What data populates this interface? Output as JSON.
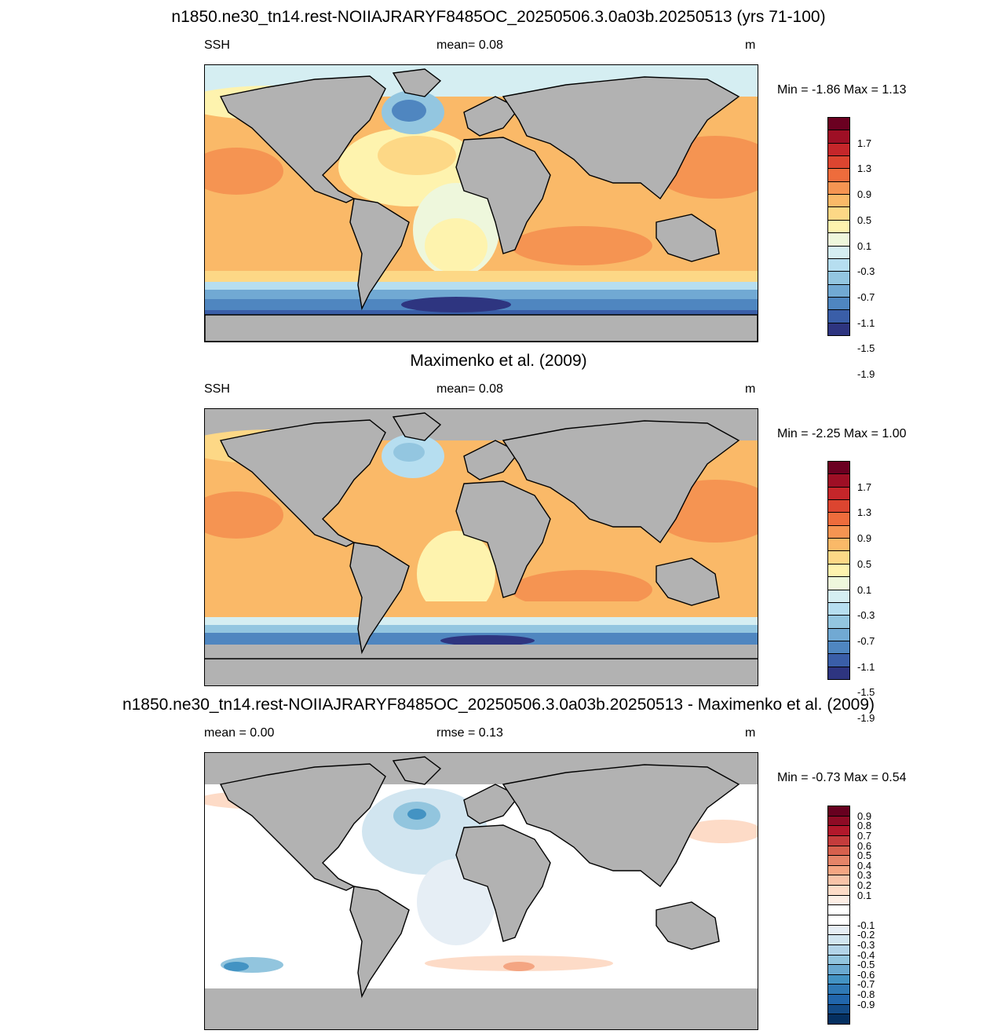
{
  "panels": [
    {
      "title": "n1850.ne30_tn14.rest-NOIIAJRARYF8485OC_20250506.3.0a03b.20250513 (yrs 71-100)",
      "left_label": "SSH",
      "center_label": "mean=   0.08",
      "right_label": "m",
      "minmax": "Min =  -1.86 Max =   1.13",
      "colorbar": {
        "colors": [
          "#6b0021",
          "#9e0f25",
          "#c5262a",
          "#dc4530",
          "#ee6c3c",
          "#f59452",
          "#fab968",
          "#fdd886",
          "#fef3ae",
          "#eef7dc",
          "#d5eef2",
          "#b6def0",
          "#93c6e0",
          "#71a9d3",
          "#4f86c0",
          "#3a5ea8",
          "#2e3580"
        ],
        "labels": [
          "1.7",
          "1.3",
          "0.9",
          "0.5",
          "0.1",
          "-0.3",
          "-0.7",
          "-1.1",
          "-1.5",
          "-1.9"
        ]
      }
    },
    {
      "title": "Maximenko et al. (2009)",
      "left_label": "SSH",
      "center_label": "mean=   0.08",
      "right_label": "m",
      "minmax": "Min =  -2.25 Max =   1.00",
      "colorbar": {
        "colors": [
          "#6b0021",
          "#9e0f25",
          "#c5262a",
          "#dc4530",
          "#ee6c3c",
          "#f59452",
          "#fab968",
          "#fdd886",
          "#fef3ae",
          "#eef7dc",
          "#d5eef2",
          "#b6def0",
          "#93c6e0",
          "#71a9d3",
          "#4f86c0",
          "#3a5ea8",
          "#2e3580"
        ],
        "labels": [
          "1.7",
          "1.3",
          "0.9",
          "0.5",
          "0.1",
          "-0.3",
          "-0.7",
          "-1.1",
          "-1.5",
          "-1.9"
        ]
      }
    },
    {
      "title": "n1850.ne30_tn14.rest-NOIIAJRARYF8485OC_20250506.3.0a03b.20250513 - Maximenko et al. (2009)",
      "left_label": "mean =   0.00",
      "center_label": "rmse =   0.13",
      "right_label": "m",
      "minmax": "Min =  -0.73 Max =   0.54",
      "colorbar": {
        "colors": [
          "#67001f",
          "#8e0b25",
          "#b2182b",
          "#c43c3c",
          "#d6604d",
          "#e58468",
          "#f4a582",
          "#f8c3a8",
          "#fddbc7",
          "#fdeee5",
          "#ffffff",
          "#ffffff",
          "#e6eef5",
          "#d1e5f0",
          "#b3d4e8",
          "#92c5de",
          "#6aa9d0",
          "#4393c3",
          "#2f79b5",
          "#2166ac",
          "#134b87",
          "#053061"
        ],
        "labels": [
          "0.9",
          "0.8",
          "0.7",
          "0.6",
          "0.5",
          "0.4",
          "0.3",
          "0.2",
          "0.1",
          "-0.1",
          "-0.2",
          "-0.3",
          "-0.4",
          "-0.5",
          "-0.6",
          "-0.7",
          "-0.8",
          "-0.9"
        ]
      }
    }
  ]
}
